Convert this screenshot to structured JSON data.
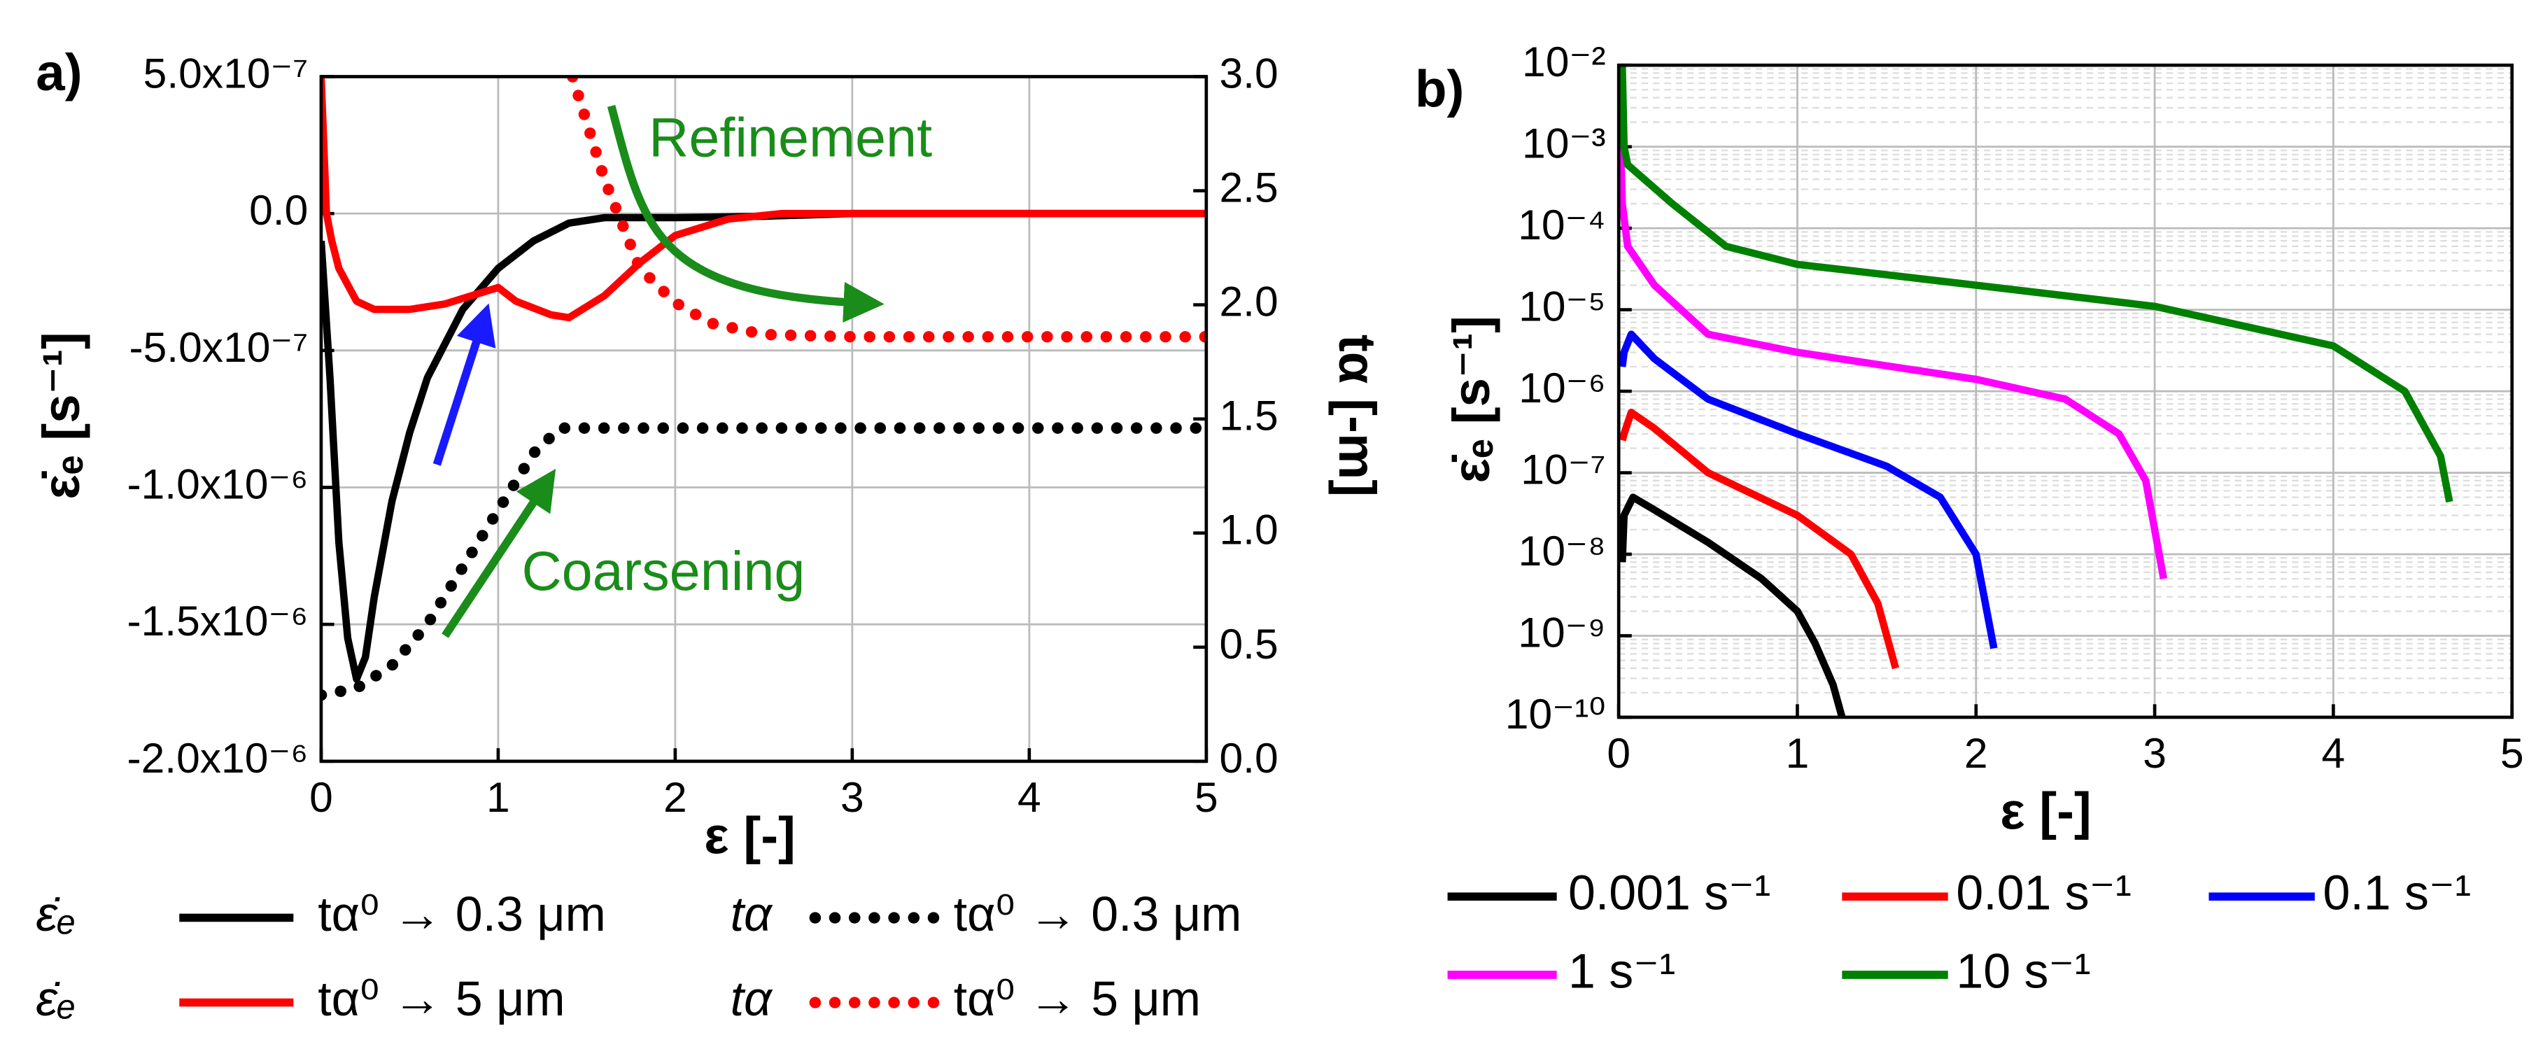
{
  "chart_data": [
    {
      "type": "line",
      "label": "a)",
      "xlabel": "ε [-]",
      "ylabel": "ε̇ₑ [s⁻¹]",
      "y2label": "tα [-m]",
      "xlim": [
        0,
        5
      ],
      "xticks": [
        0,
        1,
        2,
        3,
        4,
        5
      ],
      "ylim": [
        -2e-06,
        5e-07
      ],
      "yticks": [
        {
          "value": -2e-06,
          "label": "-2.0x10⁻⁶"
        },
        {
          "value": -1.5e-06,
          "label": "-1.5x10⁻⁶"
        },
        {
          "value": -1e-06,
          "label": "-1.0x10⁻⁶"
        },
        {
          "value": -5e-07,
          "label": "-5.0x10⁻⁷"
        },
        {
          "value": 0,
          "label": "0.0"
        },
        {
          "value": 5e-07,
          "label": "5.0x10⁻⁷"
        }
      ],
      "y2lim": [
        0,
        3
      ],
      "y2ticks": [
        {
          "value": 0,
          "label": "0.0"
        },
        {
          "value": 0.5,
          "label": "0.5"
        },
        {
          "value": 1,
          "label": "1.0"
        },
        {
          "value": 1.5,
          "label": "1.5"
        },
        {
          "value": 2,
          "label": "2.0"
        },
        {
          "value": 2.5,
          "label": "2.5"
        },
        {
          "value": 3,
          "label": "3.0"
        }
      ],
      "grid": true,
      "log": false,
      "annotations": [
        "Refinement",
        "Coarsening"
      ],
      "series": [
        {
          "quantity": "ε̇ₑ",
          "name": "tα⁰ → 0.3 μm",
          "color": "#000000",
          "style": "solid",
          "x": [
            0,
            0.05,
            0.1,
            0.15,
            0.2,
            0.25,
            0.3,
            0.4,
            0.5,
            0.6,
            0.8,
            1.0,
            1.2,
            1.4,
            1.6,
            2.0,
            2.5,
            3,
            5
          ],
          "values": [
            -1e-07,
            -6e-07,
            -1.2e-06,
            -1.55e-06,
            -1.7e-06,
            -1.62e-06,
            -1.4e-06,
            -1.05e-06,
            -8e-07,
            -6e-07,
            -3.5e-07,
            -2e-07,
            -1e-07,
            -3.5e-08,
            -1.5e-08,
            -1.5e-08,
            -1e-08,
            0,
            0
          ]
        },
        {
          "quantity": "ε̇ₑ",
          "name": "tα⁰ → 5 μm",
          "color": "#ff0000",
          "style": "solid",
          "x": [
            0,
            0.03,
            0.06,
            0.1,
            0.2,
            0.3,
            0.5,
            0.7,
            0.9,
            1.0,
            1.1,
            1.3,
            1.4,
            1.6,
            1.8,
            2.0,
            2.3,
            2.6,
            5
          ],
          "values": [
            5e-07,
            0,
            -1e-07,
            -2e-07,
            -3.2e-07,
            -3.5e-07,
            -3.5e-07,
            -3.3e-07,
            -2.9e-07,
            -2.7e-07,
            -3.2e-07,
            -3.7e-07,
            -3.8e-07,
            -3e-07,
            -1.8e-07,
            -8e-08,
            -2e-08,
            0,
            0
          ]
        },
        {
          "quantity": "tα",
          "name": "tα⁰ → 0.3 μm",
          "color": "#000000",
          "style": "dotted",
          "axis": "y2",
          "x": [
            0,
            0.2,
            0.4,
            0.6,
            0.8,
            1.0,
            1.2,
            1.35,
            5
          ],
          "values": [
            0.29,
            0.32,
            0.42,
            0.6,
            0.85,
            1.1,
            1.35,
            1.46,
            1.46
          ]
        },
        {
          "quantity": "tα",
          "name": "tα⁰ → 5 μm",
          "color": "#ff0000",
          "style": "dotted",
          "axis": "y2",
          "x": [
            1.42,
            1.6,
            1.8,
            2.0,
            2.2,
            2.5,
            3,
            5
          ],
          "values": [
            3.0,
            2.55,
            2.16,
            2.01,
            1.92,
            1.87,
            1.86,
            1.86
          ]
        }
      ]
    },
    {
      "type": "line",
      "label": "b)",
      "xlabel": "ε [-]",
      "ylabel": "ε̇ₑ [s⁻¹]",
      "xlim": [
        0,
        5
      ],
      "xticks": [
        0,
        1,
        2,
        3,
        4,
        5
      ],
      "ylim": [
        1e-10,
        0.01
      ],
      "yticks": [
        {
          "value": 1e-10,
          "label": "10⁻¹⁰"
        },
        {
          "value": 1e-09,
          "label": "10⁻⁹"
        },
        {
          "value": 1e-08,
          "label": "10⁻⁸"
        },
        {
          "value": 1e-07,
          "label": "10⁻⁷"
        },
        {
          "value": 1e-06,
          "label": "10⁻⁶"
        },
        {
          "value": 1e-05,
          "label": "10⁻⁵"
        },
        {
          "value": 0.0001,
          "label": "10⁻⁴"
        },
        {
          "value": 0.001,
          "label": "10⁻³"
        },
        {
          "value": 0.01,
          "label": "10⁻²"
        }
      ],
      "grid": true,
      "log": true,
      "series": [
        {
          "name": "0.001 s⁻¹",
          "color": "#000000",
          "style": "solid",
          "x": [
            0.02,
            0.03,
            0.08,
            0.2,
            0.5,
            0.8,
            1.0,
            1.1,
            1.2,
            1.25
          ],
          "values": [
            8e-09,
            3e-08,
            5e-08,
            3.5e-08,
            1.4e-08,
            5e-09,
            2e-09,
            8e-10,
            2.5e-10,
            1e-10
          ]
        },
        {
          "name": "0.01 s⁻¹",
          "color": "#ff0000",
          "style": "solid",
          "x": [
            0.02,
            0.03,
            0.07,
            0.2,
            0.5,
            1.0,
            1.3,
            1.45,
            1.55
          ],
          "values": [
            2.5e-07,
            3e-07,
            5.5e-07,
            3.5e-07,
            1e-07,
            3e-08,
            1e-08,
            2.5e-09,
            4e-10
          ]
        },
        {
          "name": "0.1 s⁻¹",
          "color": "#0000ff",
          "style": "solid",
          "x": [
            0.02,
            0.03,
            0.07,
            0.2,
            0.5,
            1.0,
            1.5,
            1.8,
            2.0,
            2.1
          ],
          "values": [
            2e-06,
            3e-06,
            5e-06,
            2.5e-06,
            8e-07,
            3e-07,
            1.2e-07,
            5e-08,
            1e-08,
            7e-10
          ]
        },
        {
          "name": "1 s⁻¹",
          "color": "#ff00ff",
          "style": "solid",
          "x": [
            0.01,
            0.02,
            0.05,
            0.2,
            0.5,
            1.0,
            2.0,
            2.5,
            2.8,
            2.95,
            3.05
          ],
          "values": [
            0.001,
            0.0002,
            6e-05,
            2e-05,
            5e-06,
            3e-06,
            1.4e-06,
            8e-07,
            3e-07,
            8e-08,
            5e-09
          ]
        },
        {
          "name": "10 s⁻¹",
          "color": "#008000",
          "style": "solid",
          "x": [
            0.02,
            0.03,
            0.05,
            0.3,
            0.6,
            1.0,
            2.0,
            3.0,
            4.0,
            4.4,
            4.6,
            4.65
          ],
          "values": [
            0.01,
            0.001,
            0.0006,
            0.0002,
            6e-05,
            3.6e-05,
            2e-05,
            1.1e-05,
            3.6e-06,
            1e-06,
            1.6e-07,
            4.4e-08
          ]
        }
      ]
    }
  ]
}
